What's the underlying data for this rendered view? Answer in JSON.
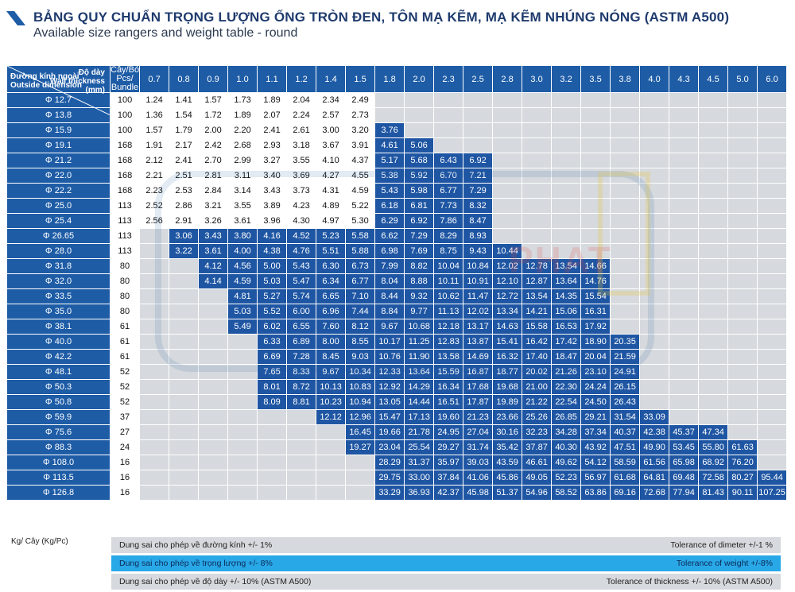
{
  "header": {
    "title": "BẢNG QUY CHUẨN TRỌNG LƯỢNG ỐNG TRÒN ĐEN, TÔN MẠ KẼM, MẠ KẼM NHÚNG NÓNG (ASTM A500)",
    "subtitle": "Available size rangers and weight table - round"
  },
  "table": {
    "corner_thickness_vi": "Độ dày",
    "corner_thickness_en": "Wall thickness",
    "corner_unit": "(mm)",
    "corner_diameter_vi": "Đường kính ngoài",
    "corner_diameter_en": "Outside dimension",
    "bundle_header": [
      "Cây/Bó",
      "Pcs/",
      "Bundle"
    ],
    "thickness": [
      "0.7",
      "0.8",
      "0.9",
      "1.0",
      "1.1",
      "1.2",
      "1.4",
      "1.5",
      "1.8",
      "2.0",
      "2.3",
      "2.5",
      "2.8",
      "3.0",
      "3.2",
      "3.5",
      "3.8",
      "4.0",
      "4.3",
      "4.5",
      "5.0",
      "6.0"
    ],
    "rows": [
      {
        "d": "Φ 12.7",
        "b": "100",
        "v": [
          "1.24",
          "1.41",
          "1.57",
          "1.73",
          "1.89",
          "2.04",
          "2.34",
          "2.49",
          "",
          "",
          "",
          "",
          "",
          "",
          "",
          "",
          "",
          "",
          "",
          "",
          "",
          ""
        ]
      },
      {
        "d": "Φ 13.8",
        "b": "100",
        "v": [
          "1.36",
          "1.54",
          "1.72",
          "1.89",
          "2.07",
          "2.24",
          "2.57",
          "2.73",
          "",
          "",
          "",
          "",
          "",
          "",
          "",
          "",
          "",
          "",
          "",
          "",
          "",
          ""
        ]
      },
      {
        "d": "Φ 15.9",
        "b": "100",
        "v": [
          "1.57",
          "1.79",
          "2.00",
          "2.20",
          "2.41",
          "2.61",
          "3.00",
          "3.20",
          "3.76",
          "",
          "",
          "",
          "",
          "",
          "",
          "",
          "",
          "",
          "",
          "",
          "",
          ""
        ]
      },
      {
        "d": "Φ 19.1",
        "b": "168",
        "v": [
          "1.91",
          "2.17",
          "2.42",
          "2.68",
          "2.93",
          "3.18",
          "3.67",
          "3.91",
          "4.61",
          "5.06",
          "",
          "",
          "",
          "",
          "",
          "",
          "",
          "",
          "",
          "",
          "",
          ""
        ]
      },
      {
        "d": "Φ 21.2",
        "b": "168",
        "v": [
          "2.12",
          "2.41",
          "2.70",
          "2.99",
          "3.27",
          "3.55",
          "4.10",
          "4.37",
          "5.17",
          "5.68",
          "6.43",
          "6.92",
          "",
          "",
          "",
          "",
          "",
          "",
          "",
          "",
          "",
          ""
        ]
      },
      {
        "d": "Φ 22.0",
        "b": "168",
        "v": [
          "2.21",
          "2.51",
          "2.81",
          "3.11",
          "3.40",
          "3.69",
          "4.27",
          "4.55",
          "5.38",
          "5.92",
          "6.70",
          "7.21",
          "",
          "",
          "",
          "",
          "",
          "",
          "",
          "",
          "",
          ""
        ]
      },
      {
        "d": "Φ 22.2",
        "b": "168",
        "v": [
          "2.23",
          "2.53",
          "2.84",
          "3.14",
          "3.43",
          "3.73",
          "4.31",
          "4.59",
          "5.43",
          "5.98",
          "6.77",
          "7.29",
          "",
          "",
          "",
          "",
          "",
          "",
          "",
          "",
          "",
          ""
        ]
      },
      {
        "d": "Φ 25.0",
        "b": "113",
        "v": [
          "2.52",
          "2.86",
          "3.21",
          "3.55",
          "3.89",
          "4.23",
          "4.89",
          "5.22",
          "6.18",
          "6.81",
          "7.73",
          "8.32",
          "",
          "",
          "",
          "",
          "",
          "",
          "",
          "",
          "",
          ""
        ]
      },
      {
        "d": "Φ 25.4",
        "b": "113",
        "v": [
          "2.56",
          "2.91",
          "3.26",
          "3.61",
          "3.96",
          "4.30",
          "4.97",
          "5.30",
          "6.29",
          "6.92",
          "7.86",
          "8.47",
          "",
          "",
          "",
          "",
          "",
          "",
          "",
          "",
          "",
          ""
        ]
      },
      {
        "d": "Φ 26.65",
        "b": "113",
        "v": [
          "",
          "3.06",
          "3.43",
          "3.80",
          "4.16",
          "4.52",
          "5.23",
          "5.58",
          "6.62",
          "7.29",
          "8.29",
          "8.93",
          "",
          "",
          "",
          "",
          "",
          "",
          "",
          "",
          "",
          ""
        ]
      },
      {
        "d": "Φ 28.0",
        "b": "113",
        "v": [
          "",
          "3.22",
          "3.61",
          "4.00",
          "4.38",
          "4.76",
          "5.51",
          "5.88",
          "6.98",
          "7.69",
          "8.75",
          "9.43",
          "10.44",
          "",
          "",
          "",
          "",
          "",
          "",
          "",
          "",
          ""
        ]
      },
      {
        "d": "Φ 31.8",
        "b": "80",
        "v": [
          "",
          "",
          "4.12",
          "4.56",
          "5.00",
          "5.43",
          "6.30",
          "6.73",
          "7.99",
          "8.82",
          "10.04",
          "10.84",
          "12.02",
          "12.78",
          "13.54",
          "14.66",
          "",
          "",
          "",
          "",
          "",
          ""
        ]
      },
      {
        "d": "Φ 32.0",
        "b": "80",
        "v": [
          "",
          "",
          "4.14",
          "4.59",
          "5.03",
          "5.47",
          "6.34",
          "6.77",
          "8.04",
          "8.88",
          "10.11",
          "10.91",
          "12.10",
          "12.87",
          "13.64",
          "14.76",
          "",
          "",
          "",
          "",
          "",
          ""
        ]
      },
      {
        "d": "Φ 33.5",
        "b": "80",
        "v": [
          "",
          "",
          "",
          "4.81",
          "5.27",
          "5.74",
          "6.65",
          "7.10",
          "8.44",
          "9.32",
          "10.62",
          "11.47",
          "12.72",
          "13.54",
          "14.35",
          "15.54",
          "",
          "",
          "",
          "",
          "",
          ""
        ]
      },
      {
        "d": "Φ 35.0",
        "b": "80",
        "v": [
          "",
          "",
          "",
          "5.03",
          "5.52",
          "6.00",
          "6.96",
          "7.44",
          "8.84",
          "9.77",
          "11.13",
          "12.02",
          "13.34",
          "14.21",
          "15.06",
          "16.31",
          "",
          "",
          "",
          "",
          "",
          ""
        ]
      },
      {
        "d": "Φ 38.1",
        "b": "61",
        "v": [
          "",
          "",
          "",
          "5.49",
          "6.02",
          "6.55",
          "7.60",
          "8.12",
          "9.67",
          "10.68",
          "12.18",
          "13.17",
          "14.63",
          "15.58",
          "16.53",
          "17.92",
          "",
          "",
          "",
          "",
          "",
          ""
        ]
      },
      {
        "d": "Φ 40.0",
        "b": "61",
        "v": [
          "",
          "",
          "",
          "",
          "6.33",
          "6.89",
          "8.00",
          "8.55",
          "10.17",
          "11.25",
          "12.83",
          "13.87",
          "15.41",
          "16.42",
          "17.42",
          "18.90",
          "20.35",
          "",
          "",
          "",
          "",
          ""
        ]
      },
      {
        "d": "Φ 42.2",
        "b": "61",
        "v": [
          "",
          "",
          "",
          "",
          "6.69",
          "7.28",
          "8.45",
          "9.03",
          "10.76",
          "11.90",
          "13.58",
          "14.69",
          "16.32",
          "17.40",
          "18.47",
          "20.04",
          "21.59",
          "",
          "",
          "",
          "",
          ""
        ]
      },
      {
        "d": "Φ 48.1",
        "b": "52",
        "v": [
          "",
          "",
          "",
          "",
          "7.65",
          "8.33",
          "9.67",
          "10.34",
          "12.33",
          "13.64",
          "15.59",
          "16.87",
          "18.77",
          "20.02",
          "21.26",
          "23.10",
          "24.91",
          "",
          "",
          "",
          "",
          ""
        ]
      },
      {
        "d": "Φ 50.3",
        "b": "52",
        "v": [
          "",
          "",
          "",
          "",
          "8.01",
          "8.72",
          "10.13",
          "10.83",
          "12.92",
          "14.29",
          "16.34",
          "17.68",
          "19.68",
          "21.00",
          "22.30",
          "24.24",
          "26.15",
          "",
          "",
          "",
          "",
          ""
        ]
      },
      {
        "d": "Φ 50.8",
        "b": "52",
        "v": [
          "",
          "",
          "",
          "",
          "8.09",
          "8.81",
          "10.23",
          "10.94",
          "13.05",
          "14.44",
          "16.51",
          "17.87",
          "19.89",
          "21.22",
          "22.54",
          "24.50",
          "26.43",
          "",
          "",
          "",
          "",
          ""
        ]
      },
      {
        "d": "Φ 59.9",
        "b": "37",
        "v": [
          "",
          "",
          "",
          "",
          "",
          "",
          "12.12",
          "12.96",
          "15.47",
          "17.13",
          "19.60",
          "21.23",
          "23.66",
          "25.26",
          "26.85",
          "29.21",
          "31.54",
          "33.09",
          "",
          "",
          "",
          ""
        ]
      },
      {
        "d": "Φ 75.6",
        "b": "27",
        "v": [
          "",
          "",
          "",
          "",
          "",
          "",
          "",
          "16.45",
          "19.66",
          "21.78",
          "24.95",
          "27.04",
          "30.16",
          "32.23",
          "34.28",
          "37.34",
          "40.37",
          "42.38",
          "45.37",
          "47.34",
          "",
          ""
        ]
      },
      {
        "d": "Φ 88.3",
        "b": "24",
        "v": [
          "",
          "",
          "",
          "",
          "",
          "",
          "",
          "19.27",
          "23.04",
          "25.54",
          "29.27",
          "31.74",
          "35.42",
          "37.87",
          "40.30",
          "43.92",
          "47.51",
          "49.90",
          "53.45",
          "55.80",
          "61.63",
          ""
        ]
      },
      {
        "d": "Φ 108.0",
        "b": "16",
        "v": [
          "",
          "",
          "",
          "",
          "",
          "",
          "",
          "",
          "28.29",
          "31.37",
          "35.97",
          "39.03",
          "43.59",
          "46.61",
          "49.62",
          "54.12",
          "58.59",
          "61.56",
          "65.98",
          "68.92",
          "76.20",
          ""
        ]
      },
      {
        "d": "Φ 113.5",
        "b": "16",
        "v": [
          "",
          "",
          "",
          "",
          "",
          "",
          "",
          "",
          "29.75",
          "33.00",
          "37.84",
          "41.06",
          "45.86",
          "49.05",
          "52.23",
          "56.97",
          "61.68",
          "64.81",
          "69.48",
          "72.58",
          "80.27",
          "95.44"
        ]
      },
      {
        "d": "Φ 126.8",
        "b": "16",
        "v": [
          "",
          "",
          "",
          "",
          "",
          "",
          "",
          "",
          "33.29",
          "36.93",
          "42.37",
          "45.98",
          "51.37",
          "54.96",
          "58.52",
          "63.86",
          "69.16",
          "72.68",
          "77.94",
          "81.43",
          "90.11",
          "107.25"
        ]
      }
    ]
  },
  "watermark": {
    "text": "PHAT"
  },
  "footer": {
    "unit": "Kg/ Cây (Kg/Pc)",
    "tol_diameter_vi": "Dung sai cho phép về đường kính +/- 1%",
    "tol_diameter_en": "Tolerance of dimeter +/-1 %",
    "tol_weight_vi": "Dung sai cho phép về trọng lượng +/- 8%",
    "tol_weight_en": "Tolerance of weight +/-8%",
    "tol_thickness_vi": "Dung sai cho phép về độ dày +/- 10% (ASTM A500)",
    "tol_thickness_en": "Tolerance of thickness +/- 10% (ASTM A500)"
  },
  "colors": {
    "header_blue": "#1e5ca6",
    "cell_blue": "#1f56a3",
    "empty_gray": "#d6d9dd",
    "tol_blue": "#29a8e8"
  }
}
